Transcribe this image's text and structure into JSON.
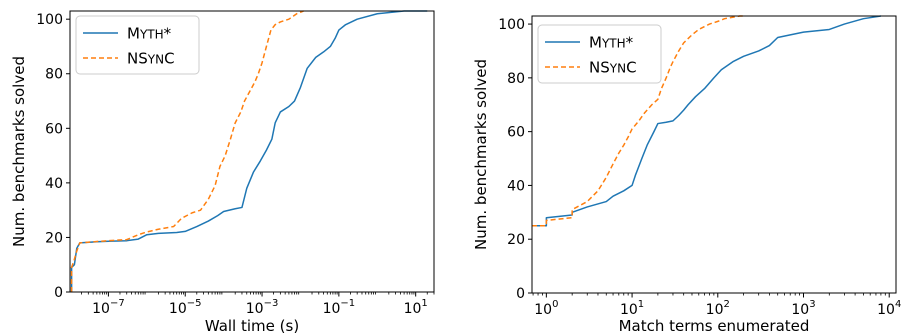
{
  "chart_data": [
    {
      "type": "line",
      "id": "left",
      "xlabel": "Wall time (s)",
      "ylabel": "Num. benchmarks solved",
      "xscale": "log",
      "xlim": [
        1e-08,
        30
      ],
      "ylim": [
        0,
        103
      ],
      "legend_placement": "top-left",
      "grid": false,
      "x_ticks": [
        {
          "value": 1e-07,
          "base": "10",
          "exp": "−7"
        },
        {
          "value": 1e-05,
          "base": "10",
          "exp": "−5"
        },
        {
          "value": 0.001,
          "base": "10",
          "exp": "−3"
        },
        {
          "value": 0.1,
          "base": "10",
          "exp": "−1"
        },
        {
          "value": 10,
          "base": "10",
          "exp": "1"
        }
      ],
      "y_ticks": [
        0,
        20,
        40,
        60,
        80,
        100
      ],
      "series": [
        {
          "name": "MYTH*",
          "color": "#1f77b4",
          "dash": "solid",
          "points": [
            [
              1.1e-08,
              0
            ],
            [
              1.1e-08,
              9
            ],
            [
              1.3e-08,
              10
            ],
            [
              1.5e-08,
              16
            ],
            [
              1.8e-08,
              18
            ],
            [
              5e-08,
              18.4
            ],
            [
              1e-07,
              18.6
            ],
            [
              3e-07,
              18.8
            ],
            [
              6e-07,
              19.4
            ],
            [
              1e-06,
              21
            ],
            [
              2e-06,
              21.5
            ],
            [
              6e-06,
              21.8
            ],
            [
              1e-05,
              22.2
            ],
            [
              2e-05,
              24
            ],
            [
              4e-05,
              26
            ],
            [
              7e-05,
              28
            ],
            [
              0.0001,
              29.5
            ],
            [
              0.0002,
              30.5
            ],
            [
              0.0003,
              31
            ],
            [
              0.0004,
              38
            ],
            [
              0.0006,
              44
            ],
            [
              0.0009,
              48
            ],
            [
              0.0013,
              52
            ],
            [
              0.0018,
              56
            ],
            [
              0.0022,
              62
            ],
            [
              0.003,
              66
            ],
            [
              0.005,
              68
            ],
            [
              0.007,
              70
            ],
            [
              0.01,
              75
            ],
            [
              0.015,
              82
            ],
            [
              0.025,
              86
            ],
            [
              0.04,
              88
            ],
            [
              0.06,
              90
            ],
            [
              0.08,
              93
            ],
            [
              0.1,
              96
            ],
            [
              0.15,
              98
            ],
            [
              0.3,
              100
            ],
            [
              1,
              102
            ],
            [
              5,
              103
            ],
            [
              20,
              103
            ]
          ]
        },
        {
          "name": "NSYNC",
          "color": "#ff7f0e",
          "dash": "dashed",
          "points": [
            [
              1.1e-08,
              0
            ],
            [
              1.1e-08,
              9
            ],
            [
              1.3e-08,
              12
            ],
            [
              1.5e-08,
              15
            ],
            [
              1.8e-08,
              18
            ],
            [
              5e-08,
              18.5
            ],
            [
              1e-07,
              18.8
            ],
            [
              3e-07,
              19.2
            ],
            [
              6e-07,
              21
            ],
            [
              1e-06,
              22
            ],
            [
              2e-06,
              23
            ],
            [
              5e-06,
              24
            ],
            [
              8e-06,
              27
            ],
            [
              1.5e-05,
              29
            ],
            [
              2.5e-05,
              30
            ],
            [
              4e-05,
              34
            ],
            [
              6e-05,
              39
            ],
            [
              8e-05,
              46
            ],
            [
              0.00011,
              50
            ],
            [
              0.00015,
              56
            ],
            [
              0.0002,
              62
            ],
            [
              0.00028,
              66
            ],
            [
              0.00035,
              70
            ],
            [
              0.0005,
              74
            ],
            [
              0.00065,
              77
            ],
            [
              0.0008,
              80
            ],
            [
              0.001,
              84
            ],
            [
              0.0013,
              90
            ],
            [
              0.0017,
              96
            ],
            [
              0.0022,
              98
            ],
            [
              0.003,
              99
            ],
            [
              0.005,
              100
            ],
            [
              0.008,
              102
            ],
            [
              0.012,
              103
            ]
          ]
        }
      ]
    },
    {
      "type": "line",
      "id": "right",
      "xlabel": "Match terms enumerated",
      "ylabel": "Num. benchmarks solved",
      "xscale": "log",
      "xlim": [
        0.68,
        12000
      ],
      "ylim": [
        0,
        103
      ],
      "legend_placement": "top-left",
      "grid": false,
      "x_ticks": [
        {
          "value": 1,
          "base": "10",
          "exp": "0"
        },
        {
          "value": 10,
          "base": "10",
          "exp": "1"
        },
        {
          "value": 100,
          "base": "10",
          "exp": "2"
        },
        {
          "value": 1000,
          "base": "10",
          "exp": "3"
        },
        {
          "value": 10000,
          "base": "10",
          "exp": "4"
        }
      ],
      "y_ticks": [
        0,
        20,
        40,
        60,
        80,
        100
      ],
      "series": [
        {
          "name": "MYTH*",
          "color": "#1f77b4",
          "dash": "solid",
          "points": [
            [
              0.68,
              25
            ],
            [
              1,
              25
            ],
            [
              1,
              28
            ],
            [
              2,
              29
            ],
            [
              2,
              30
            ],
            [
              3,
              32
            ],
            [
              5,
              34
            ],
            [
              6,
              36
            ],
            [
              8,
              38
            ],
            [
              10,
              40
            ],
            [
              11,
              44
            ],
            [
              13,
              50
            ],
            [
              15,
              55
            ],
            [
              18,
              60
            ],
            [
              20,
              63
            ],
            [
              25,
              63.5
            ],
            [
              30,
              64
            ],
            [
              35,
              66
            ],
            [
              40,
              68
            ],
            [
              45,
              70
            ],
            [
              55,
              73
            ],
            [
              70,
              76
            ],
            [
              90,
              80
            ],
            [
              110,
              83
            ],
            [
              150,
              86
            ],
            [
              200,
              88
            ],
            [
              300,
              90
            ],
            [
              400,
              92
            ],
            [
              500,
              95
            ],
            [
              700,
              96
            ],
            [
              1000,
              97
            ],
            [
              2000,
              98
            ],
            [
              3000,
              100
            ],
            [
              5000,
              102
            ],
            [
              8000,
              103
            ]
          ]
        },
        {
          "name": "NSYNC",
          "color": "#ff7f0e",
          "dash": "dashed",
          "points": [
            [
              0.68,
              25
            ],
            [
              1,
              25
            ],
            [
              1,
              27
            ],
            [
              2,
              28
            ],
            [
              2,
              31
            ],
            [
              3,
              34
            ],
            [
              4,
              38
            ],
            [
              5,
              43
            ],
            [
              6,
              48
            ],
            [
              7,
              52
            ],
            [
              8,
              55
            ],
            [
              9,
              58
            ],
            [
              10,
              61
            ],
            [
              12,
              64
            ],
            [
              14,
              67
            ],
            [
              17,
              70
            ],
            [
              20,
              72
            ],
            [
              22,
              76
            ],
            [
              25,
              80
            ],
            [
              28,
              84
            ],
            [
              30,
              86
            ],
            [
              35,
              90
            ],
            [
              40,
              93
            ],
            [
              50,
              96
            ],
            [
              60,
              98
            ],
            [
              80,
              100
            ],
            [
              100,
              101
            ],
            [
              120,
              102
            ],
            [
              180,
              103
            ],
            [
              200,
              103
            ]
          ]
        }
      ]
    }
  ]
}
